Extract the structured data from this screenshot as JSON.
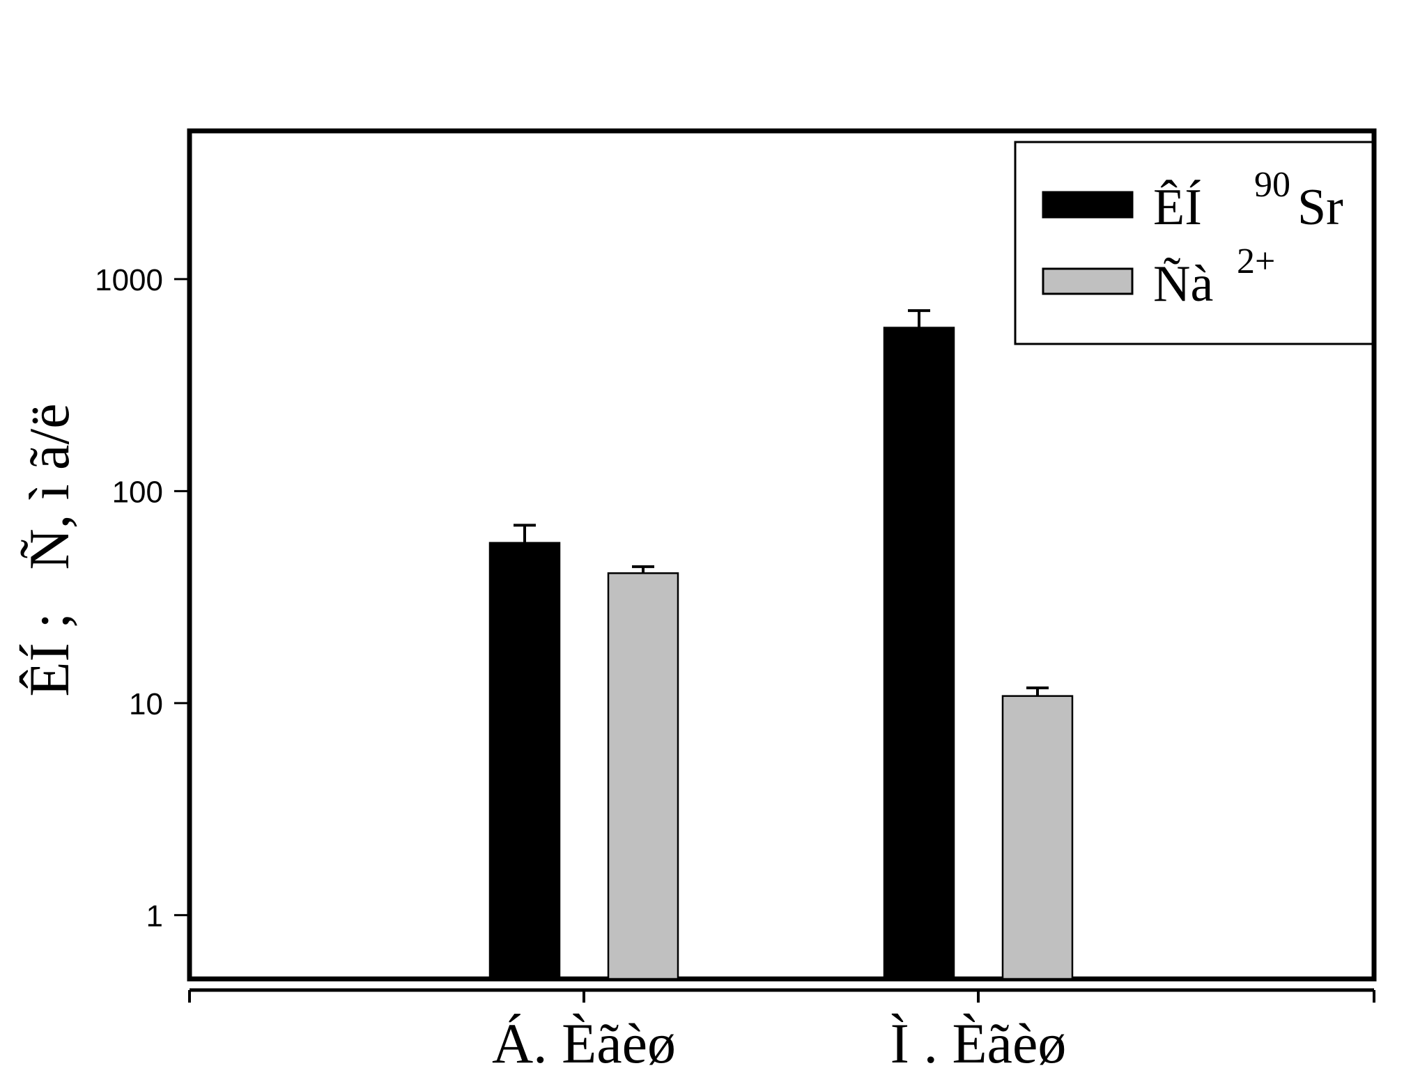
{
  "chart_data": {
    "type": "bar",
    "yscale": "log",
    "ylim": [
      0.5,
      5000
    ],
    "yticks": [
      1,
      10,
      100,
      1000
    ],
    "ytick_labels": [
      "1",
      "10",
      "100",
      "1000"
    ],
    "ylabel": "ÊÍ ;   Ñ, ì ã/ë",
    "xlabel": "",
    "title": "",
    "categories": [
      "Á. Èãèø",
      "Ì . Èãèø"
    ],
    "series": [
      {
        "name": "ÊÍ",
        "name_superscript": "90",
        "name_suffix": "Sr",
        "color": "#000000",
        "values": [
          57,
          590
        ],
        "error": [
          12,
          120
        ]
      },
      {
        "name": "Ñà",
        "name_superscript": "2+",
        "name_suffix": "",
        "color": "#c0c0c0",
        "values": [
          41,
          10.8
        ],
        "error": [
          3,
          1
        ]
      }
    ],
    "legend_position": "top-right",
    "grid": false
  }
}
